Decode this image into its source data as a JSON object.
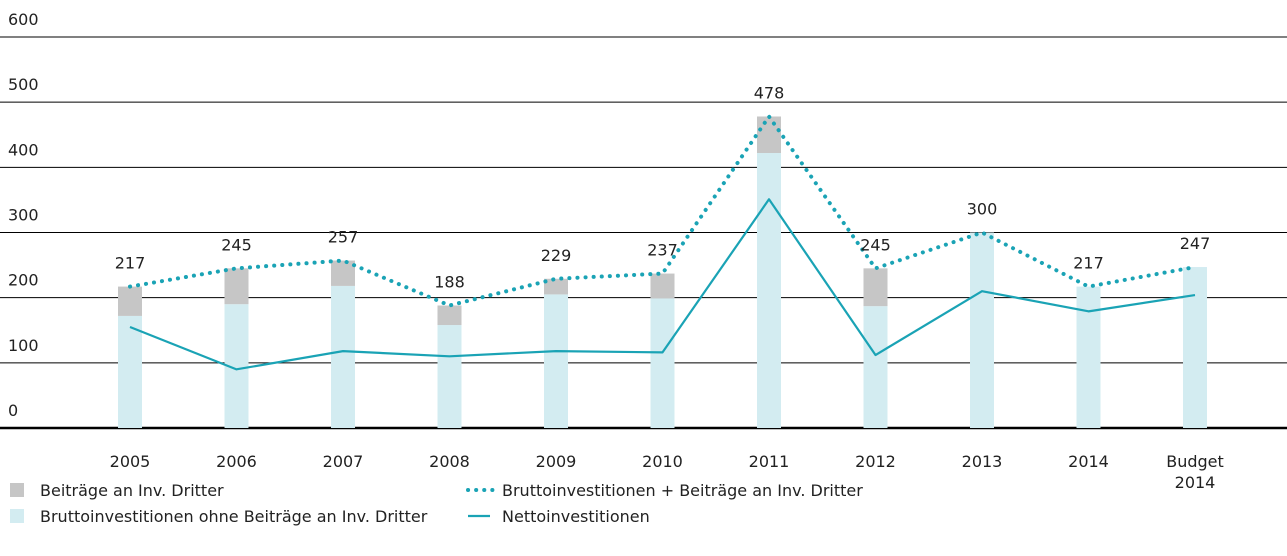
{
  "chart_data": {
    "type": "bar",
    "categories": [
      "2005",
      "2006",
      "2007",
      "2008",
      "2009",
      "2010",
      "2011",
      "2012",
      "2013",
      "2014",
      "Budget 2014"
    ],
    "series": [
      {
        "name": "Beiträge an Inv. Dritter",
        "kind": "bar",
        "color": "#c6c6c6",
        "stack": 1,
        "values": [
          45,
          55,
          39,
          30,
          24,
          38,
          56,
          58,
          0,
          0,
          0
        ]
      },
      {
        "name": "Bruttoinvestitionen ohne Beiträge an Inv. Dritter",
        "kind": "bar",
        "color": "#d3ecf1",
        "stack": 0,
        "values": [
          172,
          190,
          218,
          158,
          205,
          199,
          422,
          187,
          300,
          217,
          247
        ]
      },
      {
        "name": "Bruttoinvestitionen + Beiträge an Inv. Dritter",
        "kind": "line",
        "dash": "dotted",
        "data_labels": true,
        "color": "#1aa3b5",
        "values": [
          217,
          245,
          257,
          188,
          229,
          237,
          478,
          245,
          300,
          217,
          247
        ]
      },
      {
        "name": "Nettoinvestitionen",
        "kind": "line",
        "dash": "solid",
        "color": "#1aa3b5",
        "values": [
          155,
          90,
          118,
          110,
          118,
          116,
          351,
          112,
          210,
          179,
          204
        ]
      }
    ],
    "ylim": [
      0,
      600
    ],
    "yticks": [
      0,
      100,
      200,
      300,
      400,
      500,
      600
    ],
    "grid": true
  }
}
